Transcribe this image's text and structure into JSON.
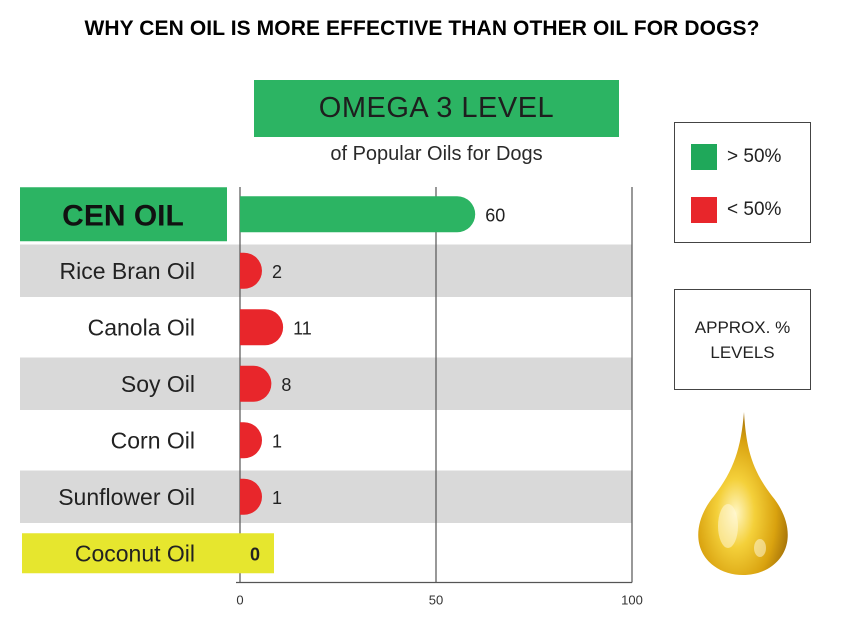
{
  "page": {
    "title": "WHY CEN OIL IS MORE EFFECTIVE THAN OTHER OIL FOR DOGS?",
    "banner": "OMEGA 3 LEVEL",
    "subtitle": "of Popular Oils for Dogs",
    "approx_line1": "APPROX. %",
    "approx_line2": "LEVELS"
  },
  "legend": [
    {
      "label": "> 50%",
      "color": "#1fa85a"
    },
    {
      "label": "< 50%",
      "color": "#e8262b"
    }
  ],
  "colors": {
    "high": "#2cb463",
    "low": "#e8262b",
    "coconut_highlight": "#e6e62e",
    "stripe": "#d9d9d9",
    "cen_label_bg": "#2cb463",
    "grid": "#555555"
  },
  "chart_data": {
    "type": "bar",
    "orientation": "horizontal",
    "categories": [
      "CEN OIL",
      "Rice Bran Oil",
      "Canola Oil",
      "Soy Oil",
      "Corn Oil",
      "Sunflower Oil",
      "Coconut Oil"
    ],
    "values": [
      60,
      2,
      11,
      8,
      1,
      1,
      0
    ],
    "value_labels": [
      "60",
      "2",
      "11",
      "8",
      "1",
      "1",
      "0"
    ],
    "xlim": [
      0,
      100
    ],
    "xticks": [
      0,
      50,
      100
    ],
    "threshold": 50,
    "grid": true,
    "legend_position": "right"
  }
}
